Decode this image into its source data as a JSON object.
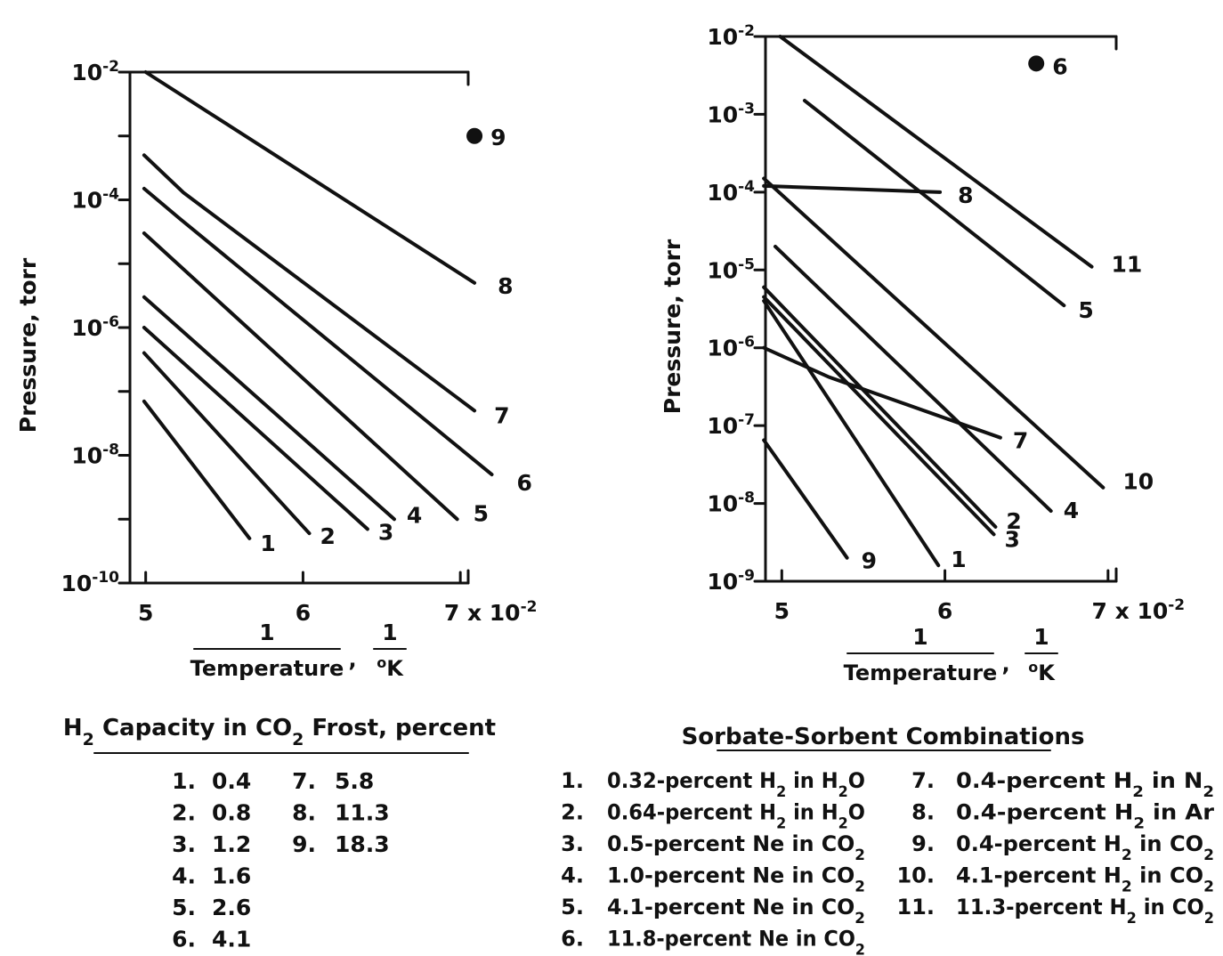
{
  "chart_data": [
    {
      "type": "line",
      "xlabel": {
        "num": "1",
        "den": "Temperature",
        "unit_num": "1",
        "unit_den": "K",
        "unit_sup": "o"
      },
      "ylabel": "Pressure, torr",
      "x_scale": "reciprocal temperature (1/K)",
      "xlim": [
        0.049,
        0.0705
      ],
      "y_scale": "log",
      "ylim": [
        1e-10,
        0.01
      ],
      "x_ticks": [
        {
          "value": 0.05,
          "label": "5"
        },
        {
          "value": 0.06,
          "label": "6"
        },
        {
          "value": 0.07,
          "label": "7 x 10",
          "exp": "-2"
        }
      ],
      "y_ticks": [
        {
          "value": 0.01,
          "base": "10",
          "exp": "-2"
        },
        {
          "value": 0.0001,
          "base": "10",
          "exp": "-4"
        },
        {
          "value": 1e-06,
          "base": "10",
          "exp": "-6"
        },
        {
          "value": 1e-08,
          "base": "10",
          "exp": "-8"
        },
        {
          "value": 1e-10,
          "base": "10",
          "exp": "-10"
        }
      ],
      "series": [
        {
          "name": "1",
          "points": [
            [
              0.0499,
              7e-08
            ],
            [
              0.0566,
              5e-10
            ]
          ]
        },
        {
          "name": "2",
          "points": [
            [
              0.0499,
              4e-07
            ],
            [
              0.0604,
              6e-10
            ]
          ]
        },
        {
          "name": "3",
          "points": [
            [
              0.0499,
              1e-06
            ],
            [
              0.0641,
              7e-10
            ]
          ]
        },
        {
          "name": "4",
          "points": [
            [
              0.0499,
              3e-06
            ],
            [
              0.0658,
              1e-09
            ]
          ]
        },
        {
          "name": "5",
          "points": [
            [
              0.0499,
              3e-05
            ],
            [
              0.0698,
              1e-09
            ]
          ]
        },
        {
          "name": "6",
          "points": [
            [
              0.0499,
              0.00015
            ],
            [
              0.0522,
              5e-05
            ],
            [
              0.072,
              5e-09
            ]
          ]
        },
        {
          "name": "7",
          "points": [
            [
              0.0499,
              0.0005
            ],
            [
              0.0524,
              0.00013
            ],
            [
              0.0709,
              5e-08
            ]
          ]
        },
        {
          "name": "8",
          "points": [
            [
              0.05,
              0.01
            ],
            [
              0.0709,
              5e-06
            ]
          ]
        },
        {
          "name": "9",
          "points": [
            [
              0.0709,
              0.001
            ]
          ],
          "marker": "dot"
        }
      ],
      "legend": {
        "title": {
          "a": "H",
          "a_sub": "2",
          "b": " Capacity in CO",
          "b_sub": "2",
          "c": " Frost,  percent"
        },
        "items": [
          {
            "no": "1.",
            "value": "0.4"
          },
          {
            "no": "2.",
            "value": "0.8"
          },
          {
            "no": "3.",
            "value": "1.2"
          },
          {
            "no": "4.",
            "value": "1.6"
          },
          {
            "no": "5.",
            "value": "2.6"
          },
          {
            "no": "6.",
            "value": "4.1"
          },
          {
            "no": "7.",
            "value": "5.8"
          },
          {
            "no": "8.",
            "value": "11.3"
          },
          {
            "no": "9.",
            "value": "18.3"
          }
        ]
      }
    },
    {
      "type": "line",
      "xlabel": {
        "num": "1",
        "den": "Temperature",
        "unit_num": "1",
        "unit_den": "K",
        "unit_sup": "o"
      },
      "ylabel": "Pressure, torr",
      "x_scale": "reciprocal temperature (1/K)",
      "xlim": [
        0.049,
        0.0705
      ],
      "y_scale": "log",
      "ylim": [
        1e-09,
        0.01
      ],
      "x_ticks": [
        {
          "value": 0.05,
          "label": "5"
        },
        {
          "value": 0.06,
          "label": "6"
        },
        {
          "value": 0.07,
          "label": "7 x 10",
          "exp": "-2"
        }
      ],
      "y_ticks": [
        {
          "value": 0.01,
          "base": "10",
          "exp": "-2"
        },
        {
          "value": 0.001,
          "base": "10",
          "exp": "-3"
        },
        {
          "value": 0.0001,
          "base": "10",
          "exp": "-4"
        },
        {
          "value": 1e-05,
          "base": "10",
          "exp": "-5"
        },
        {
          "value": 1e-06,
          "base": "10",
          "exp": "-6"
        },
        {
          "value": 1e-07,
          "base": "10",
          "exp": "-7"
        },
        {
          "value": 1e-08,
          "base": "10",
          "exp": "-8"
        },
        {
          "value": 1e-09,
          "base": "10",
          "exp": "-9"
        }
      ],
      "series": [
        {
          "name": "1",
          "points": [
            [
              0.0489,
              4e-06
            ],
            [
              0.0596,
              1.6e-09
            ]
          ]
        },
        {
          "name": "2",
          "points": [
            [
              0.0489,
              6e-06
            ],
            [
              0.0631,
              5e-09
            ]
          ]
        },
        {
          "name": "3",
          "points": [
            [
              0.0489,
              4.5e-06
            ],
            [
              0.063,
              4e-09
            ]
          ]
        },
        {
          "name": "4",
          "points": [
            [
              0.0496,
              2e-05
            ],
            [
              0.0665,
              8e-09
            ]
          ]
        },
        {
          "name": "5",
          "points": [
            [
              0.0514,
              0.0015
            ],
            [
              0.0673,
              3.5e-06
            ]
          ]
        },
        {
          "name": "6",
          "points": [
            [
              0.0656,
              0.0045
            ]
          ],
          "marker": "dot"
        },
        {
          "name": "7",
          "points": [
            [
              0.0489,
              1e-06
            ],
            [
              0.0529,
              4.2e-07
            ],
            [
              0.0634,
              7e-08
            ]
          ]
        },
        {
          "name": "8",
          "points": [
            [
              0.0489,
              0.00012
            ],
            [
              0.0597,
              0.0001
            ]
          ]
        },
        {
          "name": "9",
          "points": [
            [
              0.0489,
              6.5e-08
            ],
            [
              0.054,
              2e-09
            ]
          ]
        },
        {
          "name": "10",
          "points": [
            [
              0.0489,
              0.00015
            ],
            [
              0.0697,
              1.6e-08
            ]
          ]
        },
        {
          "name": "11",
          "points": [
            [
              0.0499,
              0.01
            ],
            [
              0.069,
              1.1e-05
            ]
          ]
        }
      ],
      "legend": {
        "title": "Sorbate-Sorbent Combinations",
        "items": [
          {
            "no": "1.",
            "parts": [
              {
                "t": "0.32-percent H"
              },
              {
                "t": "2",
                "sub": true
              },
              {
                "t": " in H"
              },
              {
                "t": "2",
                "sub": true
              },
              {
                "t": "O"
              }
            ]
          },
          {
            "no": "2.",
            "parts": [
              {
                "t": "0.64-percent H"
              },
              {
                "t": "2",
                "sub": true
              },
              {
                "t": " in H"
              },
              {
                "t": "2",
                "sub": true
              },
              {
                "t": "O"
              }
            ]
          },
          {
            "no": "3.",
            "parts": [
              {
                "t": "0.5-percent Ne in CO"
              },
              {
                "t": "2",
                "sub": true
              }
            ]
          },
          {
            "no": "4.",
            "parts": [
              {
                "t": "1.0-percent Ne in CO"
              },
              {
                "t": "2",
                "sub": true
              }
            ]
          },
          {
            "no": "5.",
            "parts": [
              {
                "t": "4.1-percent Ne in CO"
              },
              {
                "t": "2",
                "sub": true
              }
            ]
          },
          {
            "no": "6.",
            "parts": [
              {
                "t": "11.8-percent Ne in CO"
              },
              {
                "t": "2",
                "sub": true
              }
            ]
          },
          {
            "no": "7.",
            "parts": [
              {
                "t": "0.4-percent H"
              },
              {
                "t": "2",
                "sub": true
              },
              {
                "t": " in N"
              },
              {
                "t": "2",
                "sub": true
              }
            ]
          },
          {
            "no": "8.",
            "parts": [
              {
                "t": "0.4-percent H"
              },
              {
                "t": "2",
                "sub": true
              },
              {
                "t": " in Ar"
              }
            ]
          },
          {
            "no": "9.",
            "parts": [
              {
                "t": "0.4-percent H"
              },
              {
                "t": "2",
                "sub": true
              },
              {
                "t": " in CO"
              },
              {
                "t": "2",
                "sub": true
              }
            ]
          },
          {
            "no": "10.",
            "parts": [
              {
                "t": "4.1-percent H"
              },
              {
                "t": "2",
                "sub": true
              },
              {
                "t": " in CO"
              },
              {
                "t": "2",
                "sub": true
              }
            ]
          },
          {
            "no": "11.",
            "parts": [
              {
                "t": "11.3-percent H"
              },
              {
                "t": "2",
                "sub": true
              },
              {
                "t": " in CO"
              },
              {
                "t": "2",
                "sub": true
              }
            ]
          }
        ]
      }
    }
  ]
}
